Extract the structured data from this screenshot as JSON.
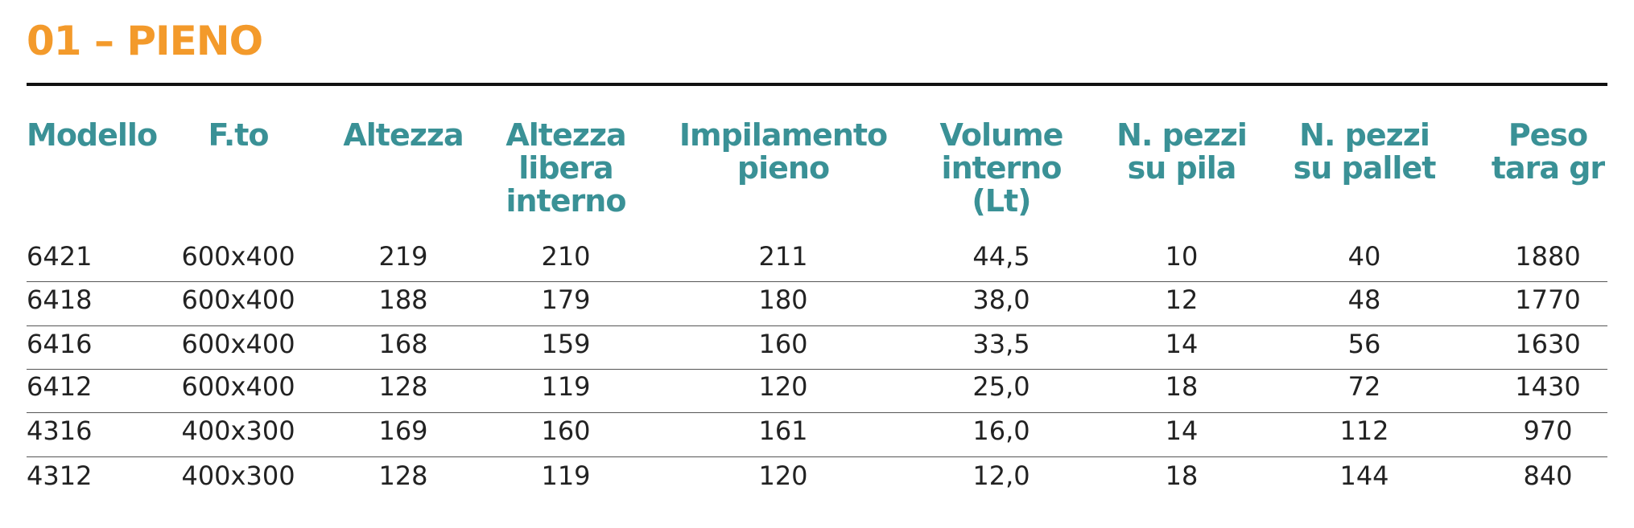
{
  "header": {
    "title": "01 – PIENO"
  },
  "table": {
    "columns": [
      [
        "Modello"
      ],
      [
        "F.to"
      ],
      [
        "Altezza"
      ],
      [
        "Altezza",
        "libera",
        "interno"
      ],
      [
        "Impilamento",
        "pieno"
      ],
      [
        "Volume",
        "interno",
        "(Lt)"
      ],
      [
        "N. pezzi",
        "su pila"
      ],
      [
        "N. pezzi",
        "su pallet"
      ],
      [
        "Peso",
        "tara gr"
      ]
    ],
    "rows": [
      [
        "6421",
        "600x400",
        "219",
        "210",
        "211",
        "44,5",
        "10",
        "40",
        "1880"
      ],
      [
        "6418",
        "600x400",
        "188",
        "179",
        "180",
        "38,0",
        "12",
        "48",
        "1770"
      ],
      [
        "6416",
        "600x400",
        "168",
        "159",
        "160",
        "33,5",
        "14",
        "56",
        "1630"
      ],
      [
        "6412",
        "600x400",
        "128",
        "119",
        "120",
        "25,0",
        "18",
        "72",
        "1430"
      ],
      [
        "4316",
        "400x300",
        "169",
        "160",
        "161",
        "16,0",
        "14",
        "112",
        "970"
      ],
      [
        "4312",
        "400x300",
        "128",
        "119",
        "120",
        "12,0",
        "18",
        "144",
        "840"
      ]
    ]
  }
}
